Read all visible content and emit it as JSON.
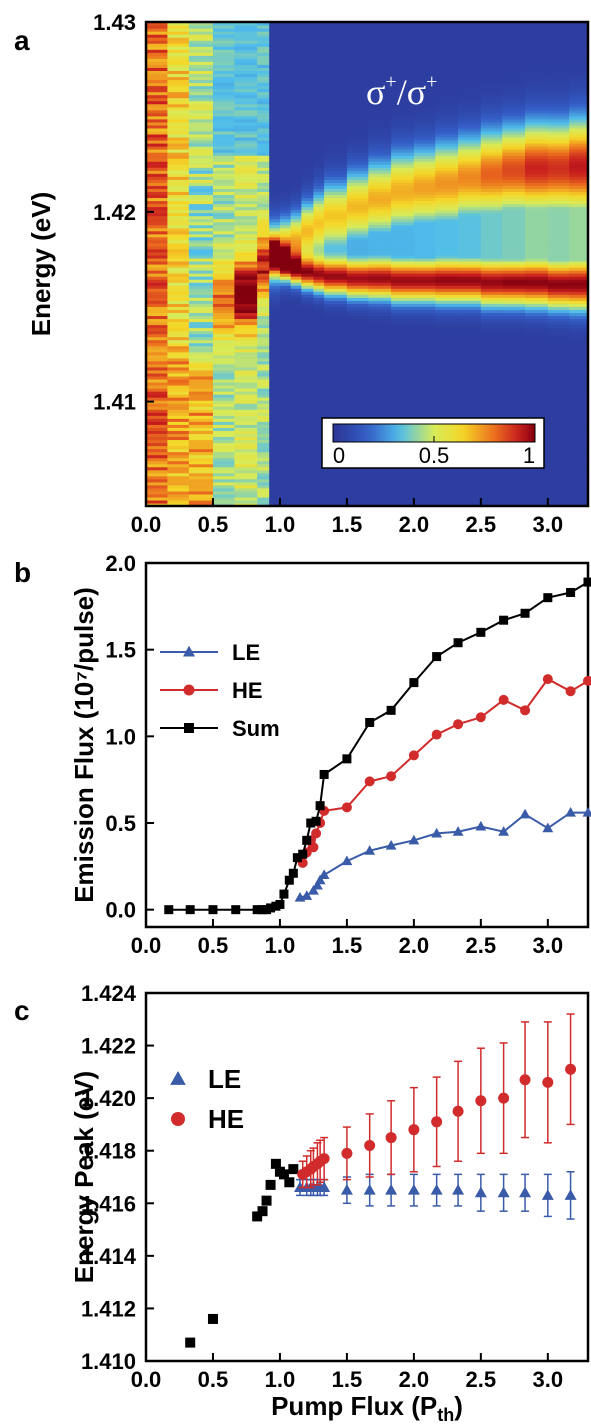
{
  "panels": {
    "a": "a",
    "b": "b",
    "c": "c"
  },
  "chart_data": [
    {
      "type": "heatmap",
      "panel": "a",
      "ylabel": "Energy (eV)",
      "xlabel": "",
      "xlim": [
        0.0,
        3.3
      ],
      "ylim": [
        1.4045,
        1.43
      ],
      "xticks": [
        "0.0",
        "0.5",
        "1.0",
        "1.5",
        "2.0",
        "2.5",
        "3.0"
      ],
      "yticks": [
        "1.41",
        "1.42",
        "1.43"
      ],
      "annotation": {
        "base": "σ",
        "sup": "+",
        "sep": "/"
      },
      "colorbar": {
        "ticks": [
          "0",
          "0.5",
          "1"
        ],
        "range": [
          0,
          1
        ]
      },
      "columns": [
        {
          "x0": 0.0,
          "x1": 0.16,
          "mode": "broad",
          "level": 0.8
        },
        {
          "x0": 0.16,
          "x1": 0.32,
          "mode": "broad",
          "level": 0.62
        },
        {
          "x0": 0.32,
          "x1": 0.5,
          "mode": "broad",
          "level": 0.45
        },
        {
          "x0": 0.5,
          "x1": 0.66,
          "mode": "broad_peak",
          "level": 0.5,
          "peak": 1.4152,
          "peakLevel": 0.68
        },
        {
          "x0": 0.66,
          "x1": 0.83,
          "mode": "broad_peak",
          "level": 0.55,
          "peak": 1.4157,
          "peakLevel": 0.9
        },
        {
          "x0": 0.83,
          "x1": 0.92,
          "mode": "broad_peak",
          "level": 0.5,
          "peak": 1.4172,
          "peakLevel": 0.78
        },
        {
          "x0": 0.92,
          "x1": 1.0,
          "mode": "split",
          "le": 1.4177,
          "he": 1.4179,
          "leLevel": 0.85,
          "heLevel": 0.7,
          "width": 0.0015
        },
        {
          "x0": 1.0,
          "x1": 1.08,
          "mode": "split",
          "le": 1.4173,
          "he": 1.4182,
          "leLevel": 0.9,
          "heLevel": 0.72,
          "width": 0.0014
        },
        {
          "x0": 1.08,
          "x1": 1.16,
          "mode": "split",
          "le": 1.417,
          "he": 1.4185,
          "leLevel": 0.88,
          "heLevel": 0.7,
          "width": 0.0014
        },
        {
          "x0": 1.16,
          "x1": 1.25,
          "mode": "split",
          "le": 1.4168,
          "he": 1.419,
          "leLevel": 0.88,
          "heLevel": 0.68,
          "width": 0.0015
        },
        {
          "x0": 1.25,
          "x1": 1.33,
          "mode": "split",
          "le": 1.4167,
          "he": 1.4194,
          "leLevel": 0.9,
          "heLevel": 0.66,
          "width": 0.0016
        },
        {
          "x0": 1.33,
          "x1": 1.5,
          "mode": "split",
          "le": 1.4166,
          "he": 1.4198,
          "leLevel": 0.92,
          "heLevel": 0.66,
          "width": 0.0017
        },
        {
          "x0": 1.5,
          "x1": 1.66,
          "mode": "split",
          "le": 1.4165,
          "he": 1.4203,
          "leLevel": 0.92,
          "heLevel": 0.68,
          "width": 0.0018
        },
        {
          "x0": 1.66,
          "x1": 1.83,
          "mode": "split",
          "le": 1.4165,
          "he": 1.4207,
          "leLevel": 0.93,
          "heLevel": 0.7,
          "width": 0.0019
        },
        {
          "x0": 1.83,
          "x1": 2.0,
          "mode": "split",
          "le": 1.4164,
          "he": 1.4211,
          "leLevel": 0.93,
          "heLevel": 0.7,
          "width": 0.002
        },
        {
          "x0": 2.0,
          "x1": 2.16,
          "mode": "split",
          "le": 1.4164,
          "he": 1.4213,
          "leLevel": 0.93,
          "heLevel": 0.72,
          "width": 0.002
        },
        {
          "x0": 2.16,
          "x1": 2.33,
          "mode": "split",
          "le": 1.4164,
          "he": 1.4215,
          "leLevel": 0.94,
          "heLevel": 0.74,
          "width": 0.0021
        },
        {
          "x0": 2.33,
          "x1": 2.5,
          "mode": "split",
          "le": 1.4164,
          "he": 1.4218,
          "leLevel": 0.94,
          "heLevel": 0.76,
          "width": 0.0021
        },
        {
          "x0": 2.5,
          "x1": 2.66,
          "mode": "split",
          "le": 1.4163,
          "he": 1.422,
          "leLevel": 0.94,
          "heLevel": 0.82,
          "width": 0.0022
        },
        {
          "x0": 2.66,
          "x1": 2.83,
          "mode": "split",
          "le": 1.4163,
          "he": 1.4222,
          "leLevel": 0.95,
          "heLevel": 0.86,
          "width": 0.0022
        },
        {
          "x0": 2.83,
          "x1": 3.0,
          "mode": "split",
          "le": 1.4163,
          "he": 1.4223,
          "leLevel": 0.95,
          "heLevel": 0.92,
          "width": 0.0023
        },
        {
          "x0": 3.0,
          "x1": 3.16,
          "mode": "split",
          "le": 1.4162,
          "he": 1.4223,
          "leLevel": 0.95,
          "heLevel": 0.9,
          "width": 0.0023
        },
        {
          "x0": 3.16,
          "x1": 3.3,
          "mode": "split",
          "le": 1.4162,
          "he": 1.4224,
          "leLevel": 0.95,
          "heLevel": 0.94,
          "width": 0.0024
        }
      ]
    },
    {
      "type": "line",
      "panel": "b",
      "ylabel": "Emission Flux (10⁷/pulse)",
      "xlim": [
        0.0,
        3.3
      ],
      "ylim": [
        -0.1,
        2.0
      ],
      "xticks": [
        "0.0",
        "0.5",
        "1.0",
        "1.5",
        "2.0",
        "2.5",
        "3.0"
      ],
      "yticks": [
        "0.0",
        "0.5",
        "1.0",
        "1.5",
        "2.0"
      ],
      "legend": {
        "placement": "left"
      },
      "series": [
        {
          "name": "LE",
          "color": "#3a5ba8",
          "marker": "triangle",
          "x": [
            1.15,
            1.2,
            1.25,
            1.28,
            1.3,
            1.33,
            1.5,
            1.67,
            1.83,
            2.0,
            2.17,
            2.33,
            2.5,
            2.67,
            2.83,
            3.0,
            3.17,
            3.3
          ],
          "y": [
            0.07,
            0.08,
            0.11,
            0.14,
            0.17,
            0.2,
            0.28,
            0.34,
            0.37,
            0.4,
            0.44,
            0.45,
            0.48,
            0.45,
            0.55,
            0.47,
            0.56,
            0.56
          ]
        },
        {
          "name": "HE",
          "color": "#d12b2b",
          "marker": "circle",
          "x": [
            1.17,
            1.2,
            1.23,
            1.25,
            1.27,
            1.3,
            1.33,
            1.5,
            1.67,
            1.83,
            2.0,
            2.17,
            2.33,
            2.5,
            2.67,
            2.83,
            3.0,
            3.17,
            3.3
          ],
          "y": [
            0.27,
            0.33,
            0.4,
            0.36,
            0.44,
            0.5,
            0.57,
            0.59,
            0.74,
            0.77,
            0.89,
            1.01,
            1.07,
            1.11,
            1.21,
            1.15,
            1.33,
            1.26,
            1.32
          ]
        },
        {
          "name": "Sum",
          "color": "#000000",
          "marker": "square",
          "x": [
            0.17,
            0.33,
            0.5,
            0.67,
            0.83,
            0.87,
            0.9,
            0.93,
            0.97,
            1.0,
            1.03,
            1.07,
            1.1,
            1.13,
            1.17,
            1.2,
            1.23,
            1.27,
            1.3,
            1.33,
            1.5,
            1.67,
            1.83,
            2.0,
            2.17,
            2.33,
            2.5,
            2.67,
            2.83,
            3.0,
            3.17,
            3.3
          ],
          "y": [
            0.0,
            0.0,
            0.0,
            0.0,
            0.0,
            0.0,
            0.0,
            0.01,
            0.02,
            0.03,
            0.09,
            0.17,
            0.21,
            0.3,
            0.32,
            0.4,
            0.5,
            0.51,
            0.6,
            0.78,
            0.87,
            1.08,
            1.15,
            1.31,
            1.46,
            1.54,
            1.6,
            1.67,
            1.71,
            1.8,
            1.83,
            1.89
          ]
        }
      ]
    },
    {
      "type": "scatter",
      "panel": "c",
      "xlabel": "Pump Flux (P",
      "xlabel_sub": "th",
      "xlabel_close": ")",
      "ylabel": "Energy Peak (eV)",
      "xlim": [
        0.0,
        3.3
      ],
      "ylim": [
        1.41,
        1.424
      ],
      "xticks": [
        "0.0",
        "0.5",
        "1.0",
        "1.5",
        "2.0",
        "2.5",
        "3.0"
      ],
      "yticks": [
        "1.410",
        "1.412",
        "1.414",
        "1.416",
        "1.418",
        "1.420",
        "1.422",
        "1.424"
      ],
      "legend": {
        "placement": "left"
      },
      "series": [
        {
          "name": "",
          "color": "#000000",
          "marker": "square",
          "x": [
            0.33,
            0.5,
            0.83,
            0.87,
            0.9,
            0.93,
            0.97,
            1.0,
            1.03,
            1.07,
            1.1
          ],
          "y": [
            1.4107,
            1.4116,
            1.4155,
            1.4157,
            1.4161,
            1.4167,
            1.4175,
            1.4172,
            1.4171,
            1.4168,
            1.4173
          ]
        },
        {
          "name": "LE",
          "color": "#3a5ba8",
          "marker": "triangle",
          "x": [
            1.15,
            1.2,
            1.23,
            1.25,
            1.28,
            1.3,
            1.33,
            1.5,
            1.67,
            1.83,
            2.0,
            2.17,
            2.33,
            2.5,
            2.67,
            2.83,
            3.0,
            3.17
          ],
          "y": [
            1.4166,
            1.4166,
            1.4166,
            1.4166,
            1.4166,
            1.4166,
            1.4166,
            1.4165,
            1.4165,
            1.4165,
            1.4165,
            1.4165,
            1.4165,
            1.4164,
            1.4164,
            1.4164,
            1.4163,
            1.4163
          ],
          "err": [
            0.0003,
            0.0003,
            0.0003,
            0.0003,
            0.0003,
            0.0003,
            0.0003,
            0.0005,
            0.0006,
            0.0006,
            0.0006,
            0.0006,
            0.0006,
            0.0007,
            0.0007,
            0.0007,
            0.0008,
            0.0009
          ]
        },
        {
          "name": "HE",
          "color": "#d12b2b",
          "marker": "circle",
          "x": [
            1.17,
            1.2,
            1.23,
            1.25,
            1.28,
            1.3,
            1.33,
            1.5,
            1.67,
            1.83,
            2.0,
            2.17,
            2.33,
            2.5,
            2.67,
            2.83,
            3.0,
            3.17
          ],
          "y": [
            1.4171,
            1.4172,
            1.4173,
            1.4174,
            1.4175,
            1.4176,
            1.4177,
            1.4179,
            1.4182,
            1.4185,
            1.4188,
            1.4191,
            1.4195,
            1.4199,
            1.42,
            1.4207,
            1.4206,
            1.4211
          ],
          "err": [
            0.0005,
            0.0006,
            0.0007,
            0.0007,
            0.0008,
            0.0008,
            0.0008,
            0.001,
            0.0012,
            0.0014,
            0.0016,
            0.0017,
            0.0019,
            0.002,
            0.0021,
            0.0022,
            0.0023,
            0.0021
          ]
        }
      ]
    }
  ]
}
